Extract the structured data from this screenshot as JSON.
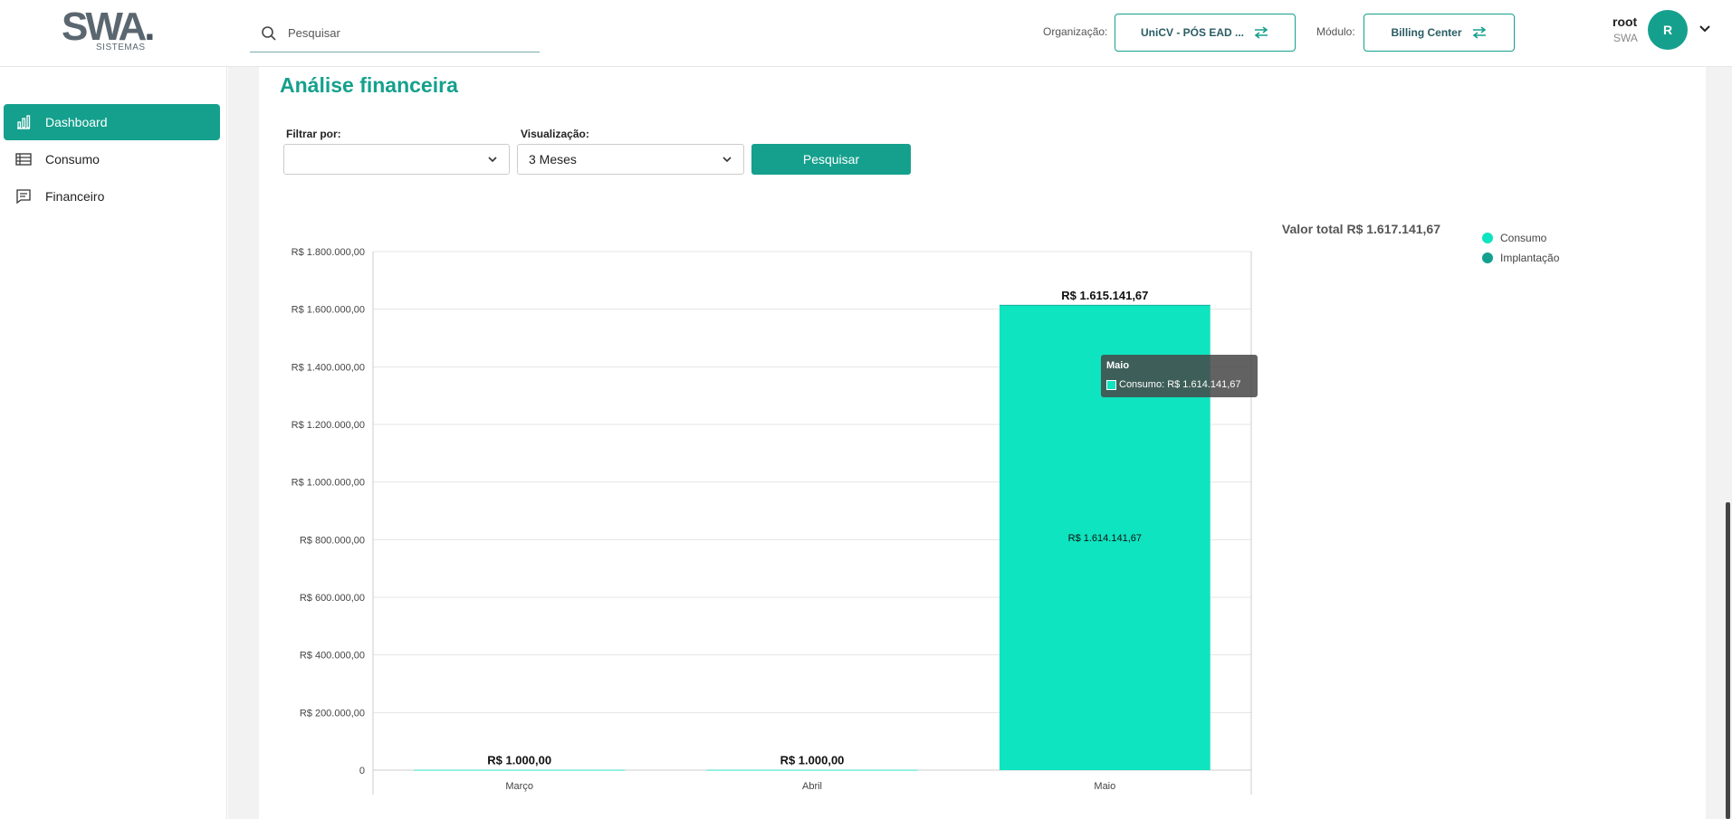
{
  "header": {
    "logo_text": "SWA",
    "logo_sub": "SISTEMAS",
    "search_placeholder": "Pesquisar",
    "org_label": "Organização:",
    "org_value": "UniCV - PÓS EAD ...",
    "module_label": "Módulo:",
    "module_value": "Billing Center",
    "user_name": "root",
    "user_org": "SWA",
    "avatar_letter": "R"
  },
  "sidebar": {
    "items": [
      {
        "label": "Dashboard",
        "icon": "bar-chart-icon",
        "active": true
      },
      {
        "label": "Consumo",
        "icon": "list-icon",
        "active": false
      },
      {
        "label": "Financeiro",
        "icon": "message-icon",
        "active": false
      }
    ]
  },
  "main": {
    "title": "Análise financeira",
    "filter_label": "Filtrar por:",
    "filter_value": "",
    "view_label": "Visualização:",
    "view_value": "3 Meses",
    "search_button": "Pesquisar",
    "total_text": "Valor total R$ 1.617.141,67"
  },
  "colors": {
    "accent": "#15a08d",
    "consumo": "#0ee4c0",
    "implantacao": "#14a08f"
  },
  "chart_data": {
    "type": "bar",
    "stacked": true,
    "categories": [
      "Março",
      "Abril",
      "Maio"
    ],
    "series": [
      {
        "name": "Consumo",
        "values": [
          1000,
          1000,
          1614141.67
        ]
      },
      {
        "name": "Implantação",
        "values": [
          0,
          0,
          1000
        ]
      }
    ],
    "totals": [
      1000,
      1000,
      1615141.67
    ],
    "total_labels": [
      "R$ 1.000,00",
      "R$ 1.000,00",
      "R$ 1.615.141,67"
    ],
    "segment_labels": [
      "",
      "",
      "R$ 1.614.141,67"
    ],
    "ylim": [
      0,
      1800000
    ],
    "yticks": [
      0,
      200000,
      400000,
      600000,
      800000,
      1000000,
      1200000,
      1400000,
      1600000,
      1800000
    ],
    "ytick_labels": [
      "0",
      "R$ 200.000,00",
      "R$ 400.000,00",
      "R$ 600.000,00",
      "R$ 800.000,00",
      "R$ 1.000.000,00",
      "R$ 1.200.000,00",
      "R$ 1.400.000,00",
      "R$ 1.600.000,00",
      "R$ 1.800.000,00"
    ],
    "legend": [
      "Consumo",
      "Implantação"
    ],
    "legend_position": "right",
    "grid": true,
    "tooltip": {
      "title": "Maio",
      "line": "Consumo: R$ 1.614.141,67"
    }
  }
}
